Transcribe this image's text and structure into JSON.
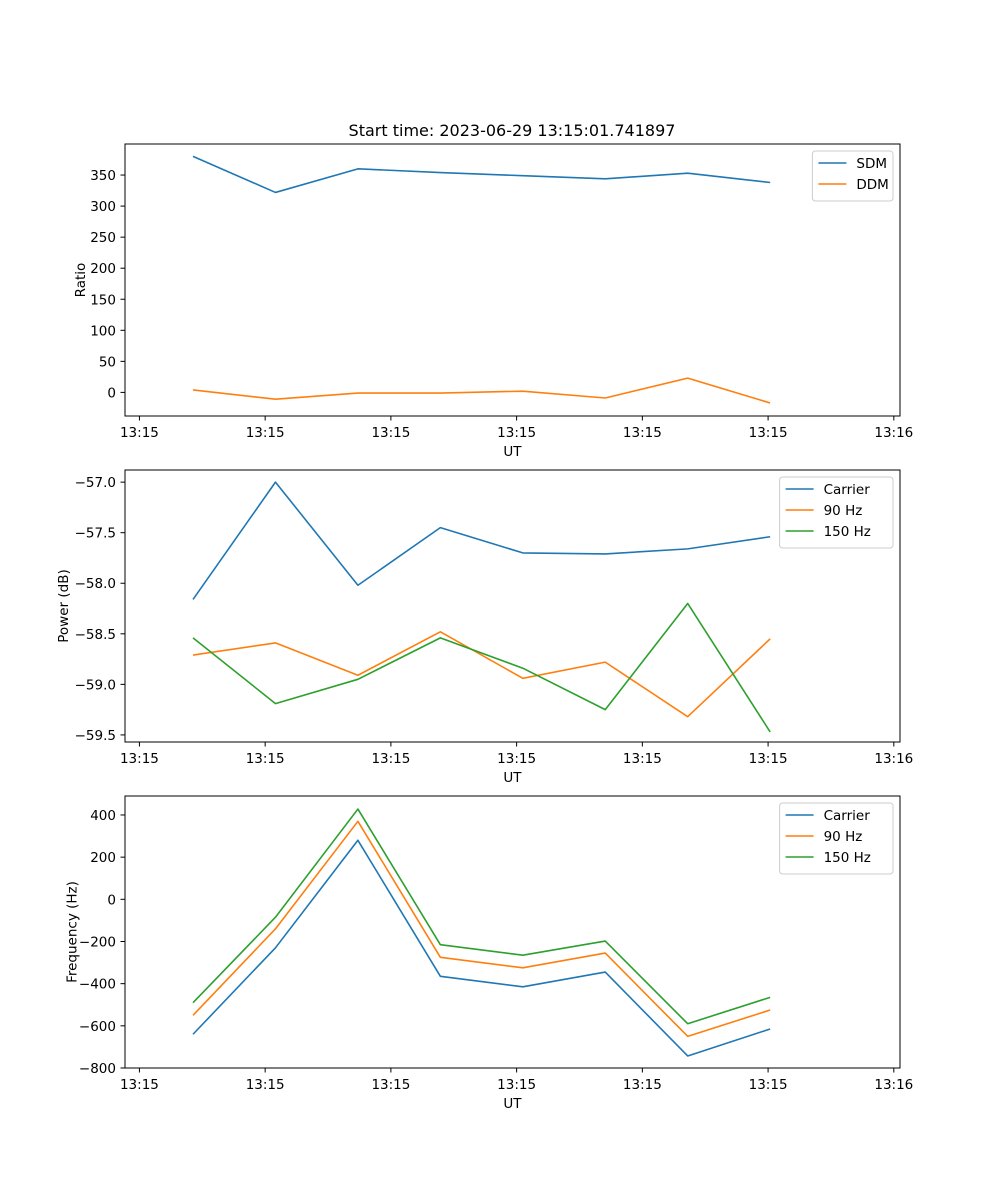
{
  "figure_title": "Start time: 2023-06-29 13:15:01.741897",
  "chart_data": [
    {
      "type": "line",
      "xlabel": "UT",
      "ylabel": "Ratio",
      "x": [
        1,
        2,
        3,
        4,
        5,
        6,
        7,
        8
      ],
      "xlim": [
        0.175,
        9.575
      ],
      "xticks": [
        {
          "pos": 0.35,
          "label": "13:15"
        },
        {
          "pos": 1.875,
          "label": "13:15"
        },
        {
          "pos": 3.4,
          "label": "13:15"
        },
        {
          "pos": 4.925,
          "label": "13:15"
        },
        {
          "pos": 6.45,
          "label": "13:15"
        },
        {
          "pos": 7.975,
          "label": "13:15"
        },
        {
          "pos": 9.5,
          "label": "13:16"
        }
      ],
      "ylim": [
        -38,
        400
      ],
      "yticks": [
        0,
        50,
        100,
        150,
        200,
        250,
        300,
        350
      ],
      "legend": "upper right",
      "series": [
        {
          "name": "SDM",
          "color": "#1f77b4",
          "values": [
            380,
            322,
            360,
            354,
            349,
            344,
            353,
            338
          ]
        },
        {
          "name": "DDM",
          "color": "#ff7f0e",
          "values": [
            4,
            -11,
            -1,
            -1,
            2,
            -9,
            23,
            -17
          ]
        }
      ]
    },
    {
      "type": "line",
      "xlabel": "UT",
      "ylabel": "Power (dB)",
      "x": [
        1,
        2,
        3,
        4,
        5,
        6,
        7,
        8
      ],
      "xlim": [
        0.175,
        9.575
      ],
      "xticks": [
        {
          "pos": 0.35,
          "label": "13:15"
        },
        {
          "pos": 1.875,
          "label": "13:15"
        },
        {
          "pos": 3.4,
          "label": "13:15"
        },
        {
          "pos": 4.925,
          "label": "13:15"
        },
        {
          "pos": 6.45,
          "label": "13:15"
        },
        {
          "pos": 7.975,
          "label": "13:15"
        },
        {
          "pos": 9.5,
          "label": "13:16"
        }
      ],
      "ylim": [
        -59.57,
        -56.88
      ],
      "yticks": [
        -59.5,
        -59.0,
        -58.5,
        -58.0,
        -57.5,
        -57.0
      ],
      "legend": "upper right",
      "series": [
        {
          "name": "Carrier",
          "color": "#1f77b4",
          "values": [
            -58.16,
            -57.0,
            -58.02,
            -57.45,
            -57.7,
            -57.71,
            -57.66,
            -57.54
          ]
        },
        {
          "name": "90 Hz",
          "color": "#ff7f0e",
          "values": [
            -58.71,
            -58.59,
            -58.91,
            -58.48,
            -58.94,
            -58.78,
            -59.32,
            -58.55
          ]
        },
        {
          "name": "150 Hz",
          "color": "#2ca02c",
          "values": [
            -58.54,
            -59.19,
            -58.95,
            -58.54,
            -58.84,
            -59.25,
            -58.2,
            -59.47
          ]
        }
      ]
    },
    {
      "type": "line",
      "xlabel": "UT",
      "ylabel": "Frequency (Hz)",
      "x": [
        1,
        2,
        3,
        4,
        5,
        6,
        7,
        8
      ],
      "xlim": [
        0.175,
        9.575
      ],
      "xticks": [
        {
          "pos": 0.35,
          "label": "13:15"
        },
        {
          "pos": 1.875,
          "label": "13:15"
        },
        {
          "pos": 3.4,
          "label": "13:15"
        },
        {
          "pos": 4.925,
          "label": "13:15"
        },
        {
          "pos": 6.45,
          "label": "13:15"
        },
        {
          "pos": 7.975,
          "label": "13:15"
        },
        {
          "pos": 9.5,
          "label": "13:16"
        }
      ],
      "ylim": [
        -800,
        490
      ],
      "yticks": [
        -800,
        -600,
        -400,
        -200,
        0,
        200,
        400
      ],
      "legend": "upper right",
      "series": [
        {
          "name": "Carrier",
          "color": "#1f77b4",
          "values": [
            -640,
            -230,
            280,
            -365,
            -415,
            -345,
            -743,
            -615
          ]
        },
        {
          "name": "90 Hz",
          "color": "#ff7f0e",
          "values": [
            -550,
            -140,
            370,
            -275,
            -325,
            -255,
            -650,
            -525
          ]
        },
        {
          "name": "150 Hz",
          "color": "#2ca02c",
          "values": [
            -490,
            -85,
            428,
            -215,
            -265,
            -198,
            -590,
            -465
          ]
        }
      ]
    }
  ]
}
